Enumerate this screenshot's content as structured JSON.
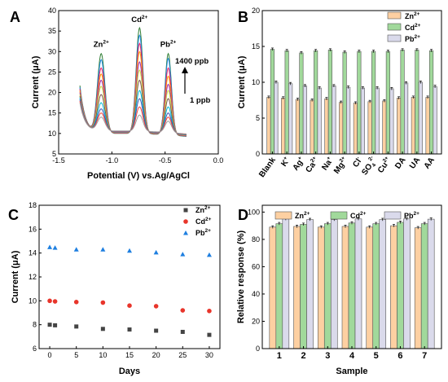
{
  "chart_data": [
    {
      "id": "A",
      "type": "line",
      "panel_label": "A",
      "xlabel": "Potential (V) vs.Ag/AgCl",
      "ylabel": "Current (μA)",
      "xlim": [
        -1.5,
        0.0
      ],
      "ylim": [
        5,
        40
      ],
      "xticks": [
        -1.5,
        -1.0,
        -0.5,
        0.0
      ],
      "xtick_labels": [
        "-1.5",
        "-1.0",
        "-0.5",
        "0.0"
      ],
      "yticks": [
        5,
        10,
        15,
        20,
        25,
        30,
        35,
        40
      ],
      "x_range": [
        -1.3,
        -0.3
      ],
      "peaks": [
        {
          "ion_base": "Zn",
          "charge": "2+",
          "potential": -1.1
        },
        {
          "ion_base": "Cd",
          "charge": "2+",
          "potential": -0.74
        },
        {
          "ion_base": "Pb",
          "charge": "2+",
          "potential": -0.47
        }
      ],
      "annotations": {
        "high": "1400 ppb",
        "low": "1 ppb"
      },
      "series": [
        {
          "color": "#2e7d32",
          "values": {
            "Zn": 29.5,
            "Cd": 35.8,
            "Pb": 29.5
          }
        },
        {
          "color": "#1e88e5",
          "values": {
            "Zn": 28.0,
            "Cd": 34.0,
            "Pb": 28.3
          }
        },
        {
          "color": "#e91e63",
          "values": {
            "Zn": 26.0,
            "Cd": 32.0,
            "Pb": 26.0
          }
        },
        {
          "color": "#ff9800",
          "values": {
            "Zn": 24.5,
            "Cd": 30.0,
            "Pb": 24.0
          }
        },
        {
          "color": "#9c27b0",
          "values": {
            "Zn": 23.0,
            "Cd": 27.5,
            "Pb": 22.0
          }
        },
        {
          "color": "#cddc39",
          "values": {
            "Zn": 21.5,
            "Cd": 25.5,
            "Pb": 20.5
          }
        },
        {
          "color": "#795548",
          "values": {
            "Zn": 19.5,
            "Cd": 23.0,
            "Pb": 18.5
          }
        },
        {
          "color": "#00bcd4",
          "values": {
            "Zn": 17.5,
            "Cd": 20.5,
            "Pb": 16.5
          }
        },
        {
          "color": "#3f51b5",
          "values": {
            "Zn": 16.0,
            "Cd": 18.5,
            "Pb": 15.0
          }
        },
        {
          "color": "#f44336",
          "values": {
            "Zn": 15.0,
            "Cd": 16.5,
            "Pb": 14.0
          }
        },
        {
          "color": "#9e9e9e",
          "values": {
            "Zn": 14.0,
            "Cd": 14.5,
            "Pb": 13.0
          }
        }
      ]
    },
    {
      "id": "B",
      "type": "bar",
      "panel_label": "B",
      "ylabel": "Current (μA)",
      "ylim": [
        0,
        20
      ],
      "yticks": [
        0,
        5,
        10,
        15,
        20
      ],
      "categories": [
        {
          "base": "Blank",
          "sup": "",
          "sub": ""
        },
        {
          "base": "K",
          "sup": "+",
          "sub": ""
        },
        {
          "base": "Ag",
          "sup": "+",
          "sub": ""
        },
        {
          "base": "Ca",
          "sup": "2+",
          "sub": ""
        },
        {
          "base": "Na",
          "sup": "+",
          "sub": ""
        },
        {
          "base": "Mg",
          "sup": "2+",
          "sub": ""
        },
        {
          "base": "Cl",
          "sup": "-",
          "sub": ""
        },
        {
          "base": "SO",
          "sup": "2-",
          "sub": "4"
        },
        {
          "base": "Cu",
          "sup": "2+",
          "sub": ""
        },
        {
          "base": "DA",
          "sup": "",
          "sub": ""
        },
        {
          "base": "UA",
          "sup": "",
          "sub": ""
        },
        {
          "base": "AA",
          "sup": "",
          "sub": ""
        }
      ],
      "legend_position": "top-right",
      "series": [
        {
          "ion_base": "Zn",
          "charge": "2+",
          "color": "#fdd0a2",
          "values": [
            7.9,
            7.8,
            7.6,
            7.5,
            7.7,
            7.2,
            7.1,
            7.3,
            7.4,
            7.8,
            7.9,
            7.9
          ]
        },
        {
          "ion_base": "Cd",
          "charge": "2+",
          "color": "#a1d99b",
          "values": [
            14.6,
            14.4,
            14.1,
            14.4,
            14.5,
            14.2,
            14.3,
            14.3,
            14.3,
            14.5,
            14.5,
            14.4
          ]
        },
        {
          "ion_base": "Pb",
          "charge": "2+",
          "color": "#dadaeb",
          "values": [
            10.0,
            9.8,
            9.5,
            9.2,
            9.5,
            9.3,
            9.2,
            9.2,
            9.1,
            9.9,
            10.0,
            9.4
          ]
        }
      ]
    },
    {
      "id": "C",
      "type": "scatter",
      "panel_label": "C",
      "xlabel": "Days",
      "ylabel": "Current (μA)",
      "xlim": [
        -2,
        32
      ],
      "ylim": [
        6,
        18
      ],
      "xticks": [
        0,
        5,
        10,
        15,
        20,
        25,
        30
      ],
      "yticks": [
        6,
        8,
        10,
        12,
        14,
        16,
        18
      ],
      "legend_position": "top-right",
      "x": [
        0,
        1,
        5,
        10,
        15,
        20,
        25,
        30
      ],
      "series": [
        {
          "ion_base": "Zn",
          "charge": "2+",
          "color": "#444444",
          "marker": "square",
          "values": [
            8.0,
            7.95,
            7.85,
            7.65,
            7.6,
            7.5,
            7.4,
            7.15
          ]
        },
        {
          "ion_base": "Cd",
          "charge": "2+",
          "color": "#e8352b",
          "marker": "circle",
          "values": [
            10.0,
            9.95,
            9.9,
            9.85,
            9.6,
            9.55,
            9.2,
            9.15
          ]
        },
        {
          "ion_base": "Pb",
          "charge": "2+",
          "color": "#1e7fe0",
          "marker": "triangle",
          "values": [
            14.5,
            14.45,
            14.3,
            14.3,
            14.2,
            14.05,
            13.9,
            13.85
          ]
        }
      ]
    },
    {
      "id": "D",
      "type": "bar",
      "panel_label": "D",
      "xlabel": "Sample",
      "ylabel": "Relative response (%)",
      "ylim": [
        0,
        105
      ],
      "yticks": [
        0,
        20,
        40,
        60,
        80,
        100
      ],
      "categories": [
        "1",
        "2",
        "3",
        "4",
        "5",
        "6",
        "7"
      ],
      "legend_position": "top",
      "series": [
        {
          "ion_base": "Zn",
          "charge": "2+",
          "color": "#fdd0a2",
          "values": [
            89.0,
            89.5,
            89.0,
            89.5,
            89.0,
            90.0,
            88.5
          ]
        },
        {
          "ion_base": "Cd",
          "charge": "2+",
          "color": "#a1d99b",
          "values": [
            91.5,
            91.0,
            91.5,
            92.0,
            91.5,
            92.5,
            91.5
          ]
        },
        {
          "ion_base": "Pb",
          "charge": "2+",
          "color": "#dadaeb",
          "values": [
            95.0,
            94.5,
            94.5,
            95.0,
            94.5,
            95.0,
            94.8
          ]
        }
      ]
    }
  ]
}
